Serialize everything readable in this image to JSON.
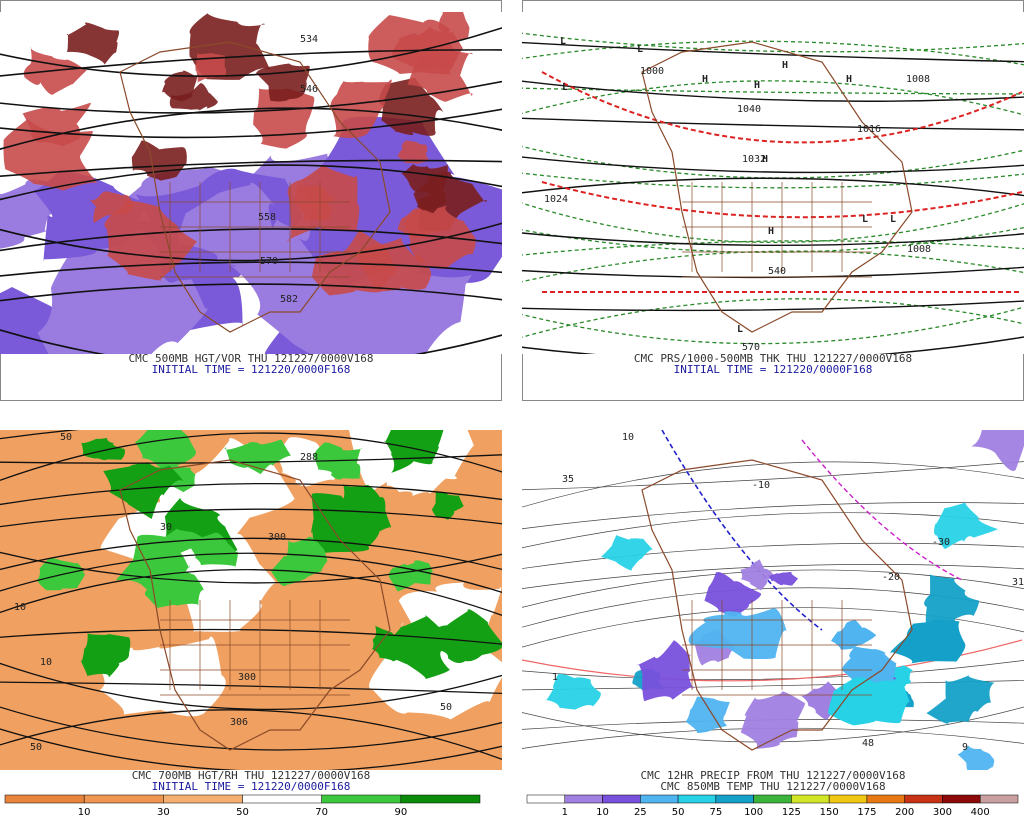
{
  "panels": [
    {
      "captions": [
        "CMC 500MB HGT/VOR THU 121227/0000V168",
        "INITIAL TIME = 121220/0000F168"
      ],
      "map_labels": [
        "546",
        "558",
        "570",
        "582",
        "534"
      ]
    },
    {
      "captions": [
        "CMC PRS/1000-500MB THK THU 121227/0000V168",
        "INITIAL TIME = 121220/0000F168"
      ],
      "map_labels": [
        "L",
        "L",
        "L",
        "L",
        "L",
        "L",
        "H",
        "H",
        "H",
        "H",
        "H",
        "H",
        "1000",
        "1008",
        "1016",
        "1024",
        "1032",
        "1040",
        "1008",
        "570",
        "540"
      ]
    },
    {
      "captions": [
        "CMC 700MB HGT/RH THU 121227/0000V168",
        "INITIAL TIME = 121220/0000F168"
      ],
      "map_labels": [
        "50",
        "10",
        "30",
        "306",
        "300",
        "288",
        "300",
        "50",
        "50",
        "10"
      ],
      "colorbar": {
        "labels": [
          10,
          30,
          50,
          70,
          90
        ],
        "colors": [
          "#e8843c",
          "#ef9650",
          "#f5b070",
          "#ffffff",
          "#3cc83c",
          "#0a8c0a"
        ]
      }
    },
    {
      "captions": [
        "CMC 12HR PRECIP FROM THU 121227/0000V168",
        "CMC 850MB TEMP THU 121227/0000V168"
      ],
      "map_labels": [
        "10",
        "-10",
        "-20",
        "-30",
        "35",
        "9",
        "48",
        "1",
        "31"
      ],
      "colorbar": {
        "labels": [
          1,
          10,
          25,
          50,
          75,
          100,
          125,
          150,
          175,
          200,
          300,
          400
        ],
        "colors": [
          "#ffffff",
          "#a080e0",
          "#7850dc",
          "#50b4f0",
          "#28d2e6",
          "#14a0c8",
          "#3cb43c",
          "#d2e628",
          "#f0c814",
          "#e87814",
          "#c83214",
          "#8c0a0a",
          "#c8a0a0"
        ]
      }
    }
  ]
}
